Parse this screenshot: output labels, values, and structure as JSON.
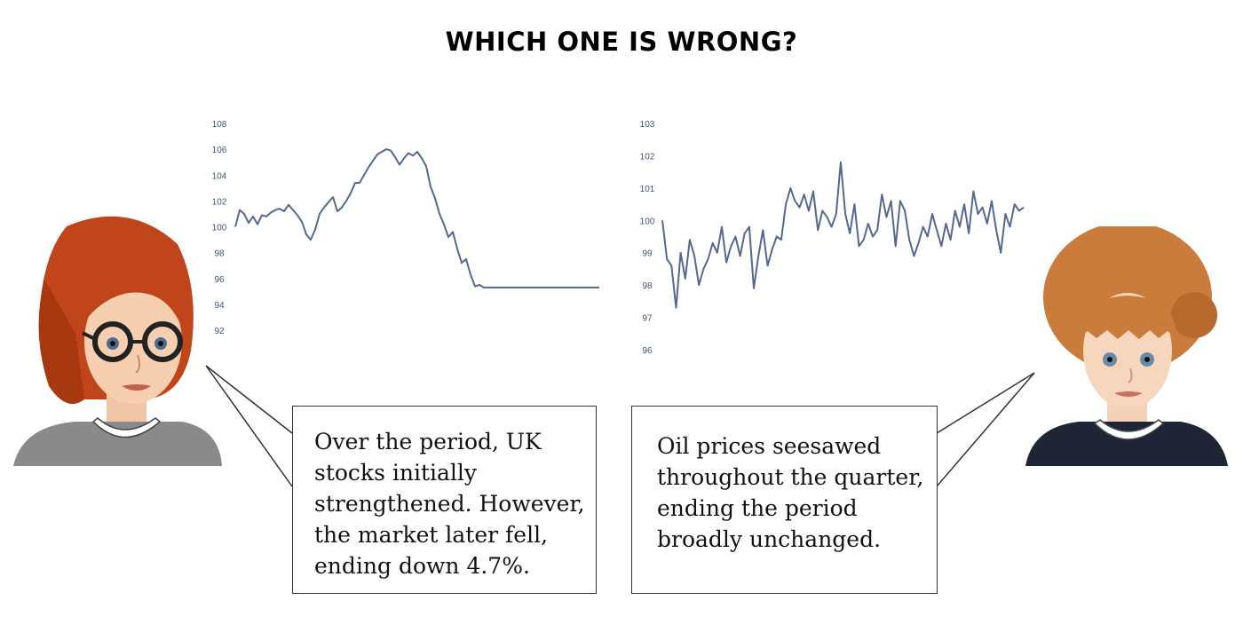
{
  "title": "WHICH ONE IS WRONG?",
  "speech": {
    "left": "Over the period, UK stocks initially strengthened. However, the market later fell, ending down 4.7%.",
    "right": "Oil prices seesawed throughout the quarter, ending the period broadly unchanged."
  },
  "colors": {
    "line": "#56688f",
    "tick_label": "#44546a"
  },
  "chart_data": [
    {
      "type": "line",
      "title": "",
      "xlabel": "",
      "ylabel": "",
      "ylim": [
        92,
        108
      ],
      "yticks": [
        92,
        94,
        96,
        98,
        100,
        102,
        104,
        106,
        108
      ],
      "grid": false,
      "x": [
        0,
        5,
        10,
        15,
        20,
        25,
        30,
        35,
        40,
        45,
        50,
        55,
        60,
        65,
        70,
        75,
        80,
        85,
        90,
        95,
        100,
        105,
        110,
        115,
        120,
        125,
        130,
        135,
        140,
        145,
        150,
        155,
        160,
        165,
        170,
        175,
        180,
        185,
        190,
        195,
        200,
        205,
        210,
        215,
        220,
        225,
        230,
        235,
        240,
        245,
        250,
        255,
        260,
        265,
        270,
        275,
        280,
        285,
        290,
        295,
        300,
        305,
        310,
        315,
        320,
        325,
        330,
        335,
        340,
        345,
        350,
        355,
        360,
        365,
        370,
        375,
        380,
        385,
        390,
        395,
        400,
        405,
        410
      ],
      "series": [
        {
          "values": [
            100.0,
            101.3,
            101.0,
            100.3,
            100.8,
            100.2,
            100.9,
            100.8,
            101.1,
            101.3,
            101.4,
            101.2,
            101.7,
            101.3,
            100.9,
            100.4,
            99.4,
            99.0,
            99.8,
            101.0,
            101.5,
            101.9,
            102.3,
            101.2,
            101.5,
            102.0,
            102.6,
            103.4,
            103.4,
            104.0,
            104.6,
            105.1,
            105.6,
            105.8,
            106.0,
            105.9,
            105.4,
            104.8,
            105.3,
            105.7,
            105.5,
            105.8,
            105.3,
            104.7,
            103.1,
            102.2,
            101.0,
            100.2,
            99.2,
            99.6,
            98.3,
            97.2,
            97.5,
            96.3,
            95.4,
            95.5,
            95.3,
            95.3,
            95.3,
            95.3,
            95.3,
            95.3,
            95.3,
            95.3,
            95.3,
            95.3,
            95.3,
            95.3,
            95.3,
            95.3,
            95.3,
            95.3,
            95.3,
            95.3,
            95.3,
            95.3,
            95.3,
            95.3,
            95.3,
            95.3,
            95.3,
            95.3,
            95.3
          ]
        }
      ]
    },
    {
      "type": "line",
      "title": "",
      "xlabel": "",
      "ylabel": "",
      "ylim": [
        96,
        103
      ],
      "yticks": [
        96,
        97,
        98,
        99,
        100,
        101,
        102,
        103
      ],
      "grid": false,
      "x": [
        0,
        5,
        10,
        15,
        20,
        25,
        30,
        35,
        40,
        45,
        50,
        55,
        60,
        65,
        70,
        75,
        80,
        85,
        90,
        95,
        100,
        105,
        110,
        115,
        120,
        125,
        130,
        135,
        140,
        145,
        150,
        155,
        160,
        165,
        170,
        175,
        180,
        185,
        190,
        195,
        200,
        205,
        210,
        215,
        220,
        225,
        230,
        235,
        240,
        245,
        250,
        255,
        260,
        265,
        270,
        275,
        280,
        285,
        290,
        295,
        300,
        305,
        310,
        315,
        320,
        325,
        330,
        335,
        340,
        345,
        350,
        355,
        360,
        365,
        370,
        375,
        380,
        385,
        390,
        395
      ],
      "series": [
        {
          "values": [
            100.0,
            98.8,
            98.6,
            97.3,
            99.0,
            98.2,
            99.4,
            98.9,
            98.0,
            98.5,
            98.8,
            99.3,
            99.0,
            99.8,
            98.7,
            99.2,
            99.5,
            98.9,
            99.6,
            99.8,
            97.9,
            98.9,
            99.7,
            98.6,
            99.1,
            99.5,
            99.4,
            100.5,
            101.0,
            100.6,
            100.4,
            100.8,
            100.3,
            100.9,
            99.7,
            100.3,
            100.1,
            99.8,
            100.2,
            101.8,
            100.2,
            99.6,
            100.5,
            99.2,
            99.4,
            99.9,
            99.5,
            99.7,
            100.8,
            100.1,
            100.6,
            99.2,
            100.6,
            100.3,
            99.4,
            98.9,
            99.3,
            99.8,
            99.5,
            100.2,
            99.7,
            99.2,
            99.9,
            99.4,
            100.3,
            99.8,
            100.5,
            99.6,
            100.9,
            100.2,
            100.4,
            99.9,
            100.6,
            99.7,
            99.0,
            100.2,
            99.8,
            100.5,
            100.3,
            100.4
          ]
        }
      ]
    }
  ]
}
